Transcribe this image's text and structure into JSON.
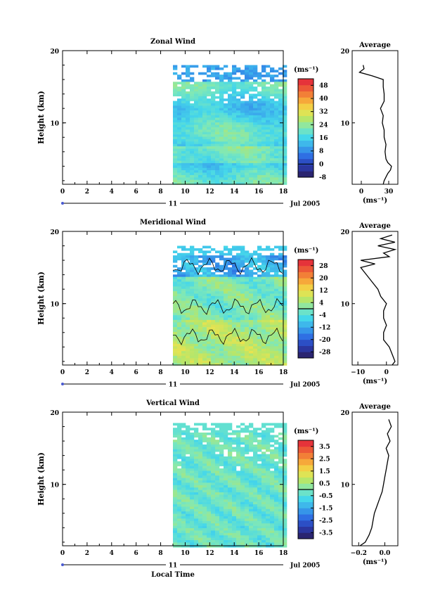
{
  "x_axis": {
    "ticks": [
      "0",
      "2",
      "4",
      "6",
      "8",
      "10",
      "12",
      "14",
      "16",
      "18"
    ],
    "day_label": "11",
    "month_label": "Jul 2005",
    "xlabel": "Local Time"
  },
  "panels": [
    {
      "title": "Zonal Wind",
      "ylabel": "Height (km)",
      "yticks": [
        "20",
        "10"
      ],
      "unit_label": "(ms⁻¹)",
      "colorbar_ticks": [
        "48",
        "40",
        "32",
        "24",
        "16",
        "8",
        "0",
        "-8"
      ],
      "profile_title": "Average",
      "profile_xticks": [
        "0",
        "30"
      ],
      "profile_yticks": [
        "20",
        "10"
      ],
      "profile_unit": "(ms⁻¹)",
      "chart_data": {
        "type": "heatmap",
        "title": "Zonal Wind",
        "xlabel": "",
        "ylabel": "Height (km)",
        "xlim": [
          0,
          18
        ],
        "ylim": [
          1.5,
          20
        ],
        "data_xrange": [
          9,
          18
        ],
        "data_yrange": [
          1.5,
          18
        ],
        "colorbar_range": [
          -8,
          52
        ],
        "average_profile": {
          "title": "Average",
          "xlim": [
            -10,
            40
          ],
          "height": [
            1.5,
            2,
            2.5,
            3,
            3.5,
            4,
            4.5,
            5,
            6,
            7,
            8,
            9,
            10,
            11,
            12,
            13,
            14,
            15,
            16,
            16.5,
            17,
            17.5,
            18
          ],
          "value": [
            24,
            25,
            27,
            29,
            32,
            33,
            29,
            27,
            26,
            27,
            25,
            25,
            23,
            24,
            21,
            25,
            25,
            24,
            24,
            12,
            -2,
            3,
            2
          ]
        }
      }
    },
    {
      "title": "Meridional Wind",
      "ylabel": "Height (km)",
      "yticks": [
        "20",
        "10"
      ],
      "unit_label": "(ms⁻¹)",
      "colorbar_ticks": [
        "28",
        "20",
        "12",
        "4",
        "-4",
        "-12",
        "-20",
        "-28"
      ],
      "profile_title": "Average",
      "profile_xticks": [
        "−10",
        "0"
      ],
      "profile_yticks": [
        "20",
        "10"
      ],
      "profile_unit": "(ms⁻¹)",
      "chart_data": {
        "type": "heatmap",
        "title": "Meridional Wind",
        "xlabel": "",
        "ylabel": "Height (km)",
        "xlim": [
          0,
          18
        ],
        "ylim": [
          1.5,
          20
        ],
        "data_xrange": [
          9,
          18
        ],
        "data_yrange": [
          1.5,
          18
        ],
        "colorbar_range": [
          -32,
          32
        ],
        "zero_contour": true,
        "average_profile": {
          "title": "Average",
          "xlim": [
            -12,
            4
          ],
          "height": [
            1.5,
            2,
            3,
            4,
            5,
            6,
            7,
            8,
            9,
            10,
            11,
            12,
            13,
            14,
            15,
            15.5,
            16,
            16.5,
            17,
            17.5,
            18,
            18.5,
            19,
            19.5
          ],
          "value": [
            2,
            3,
            2,
            1,
            -1,
            -1,
            0,
            -1,
            -1,
            0,
            -2,
            -3,
            -5,
            -7,
            -9,
            -4,
            -9,
            1,
            -1,
            3,
            -3,
            3,
            -2,
            2
          ]
        }
      }
    },
    {
      "title": "Vertical Wind",
      "ylabel": "Height (km)",
      "yticks": [
        "20",
        "10"
      ],
      "unit_label": "(ms⁻¹)",
      "colorbar_ticks": [
        "3.5",
        "2.5",
        "1.5",
        "0.5",
        "-0.5",
        "-1.5",
        "-2.5",
        "-3.5"
      ],
      "profile_title": "Average",
      "profile_xticks": [
        "−0.2",
        "0.0"
      ],
      "profile_yticks": [
        "20",
        "10"
      ],
      "profile_unit": "(ms⁻¹)",
      "chart_data": {
        "type": "heatmap",
        "title": "Vertical Wind",
        "xlabel": "Local Time",
        "ylabel": "Height (km)",
        "xlim": [
          0,
          18
        ],
        "ylim": [
          1.5,
          20
        ],
        "data_xrange": [
          9,
          18
        ],
        "data_yrange": [
          1.5,
          18.5
        ],
        "colorbar_range": [
          -4,
          4
        ],
        "average_profile": {
          "title": "Average",
          "xlim": [
            -0.25,
            0.1
          ],
          "height": [
            1.5,
            2,
            3,
            4,
            5,
            6,
            7,
            8,
            9,
            10,
            11,
            12,
            13,
            14,
            15,
            16,
            17,
            18,
            19
          ],
          "value": [
            -0.19,
            -0.15,
            -0.12,
            -0.1,
            -0.09,
            -0.08,
            -0.06,
            -0.04,
            -0.02,
            -0.01,
            0,
            0.01,
            0.02,
            0.03,
            0.01,
            0.04,
            0.02,
            0.05,
            0.03
          ]
        }
      }
    }
  ]
}
